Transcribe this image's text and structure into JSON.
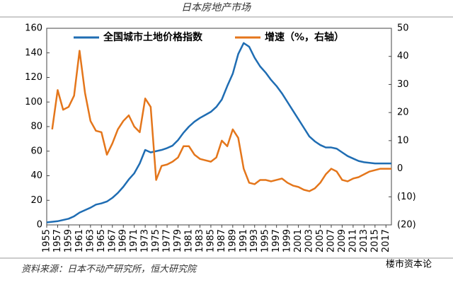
{
  "chart_data": {
    "type": "line",
    "title": "日本房地产市场",
    "x": [
      1955,
      1956,
      1957,
      1958,
      1959,
      1960,
      1961,
      1962,
      1963,
      1964,
      1965,
      1966,
      1967,
      1968,
      1969,
      1970,
      1971,
      1972,
      1973,
      1974,
      1975,
      1976,
      1977,
      1978,
      1979,
      1980,
      1981,
      1982,
      1983,
      1984,
      1985,
      1986,
      1987,
      1988,
      1989,
      1990,
      1991,
      1992,
      1993,
      1994,
      1995,
      1996,
      1997,
      1998,
      1999,
      2000,
      2001,
      2002,
      2003,
      2004,
      2005,
      2006,
      2007,
      2008,
      2009,
      2010,
      2011,
      2012,
      2013,
      2014,
      2015,
      2016,
      2017,
      2018
    ],
    "xlim": [
      1955,
      2018
    ],
    "xticks": [
      1955,
      1957,
      1959,
      1961,
      1963,
      1965,
      1967,
      1969,
      1971,
      1973,
      1975,
      1977,
      1979,
      1981,
      1983,
      1985,
      1987,
      1989,
      1991,
      1993,
      1995,
      1997,
      1999,
      2001,
      2003,
      2005,
      2007,
      2009,
      2011,
      2013,
      2015,
      2017
    ],
    "ylim": [
      0,
      160
    ],
    "yticks": [
      0,
      20,
      40,
      60,
      80,
      100,
      120,
      140,
      160
    ],
    "y2lim": [
      -20,
      50
    ],
    "y2ticks": [
      {
        "value": -20,
        "label": "(20)"
      },
      {
        "value": -10,
        "label": "(10)"
      },
      0,
      10,
      20,
      30,
      40,
      50
    ],
    "negative_tick_color": "#c00000",
    "series": [
      {
        "name": "全国城市土地价格指数",
        "color": "#1f6db3",
        "values": [
          2,
          2.5,
          3,
          4,
          5,
          7,
          10,
          12,
          14,
          16.5,
          17.5,
          19,
          22,
          26,
          31,
          37,
          42,
          50,
          61,
          59,
          60,
          61,
          62.5,
          64.5,
          69,
          75,
          80,
          84,
          87,
          89.5,
          92,
          96,
          102,
          113,
          123,
          139,
          148,
          145,
          136,
          129,
          124,
          118,
          113,
          107,
          100,
          93,
          86,
          79,
          72,
          68,
          65,
          63,
          63,
          62,
          59,
          56,
          54,
          52,
          51,
          50.5,
          50,
          50,
          50,
          50
        ]
      },
      {
        "name": "增速（%，右轴）",
        "color": "#e4761b",
        "axis": "y2",
        "values": [
          null,
          14,
          28,
          21,
          22,
          26,
          42,
          27,
          17,
          13.5,
          13,
          5,
          9,
          14,
          17,
          19,
          15,
          13,
          25,
          22,
          -4,
          1,
          1.5,
          2.5,
          4,
          8,
          8,
          5,
          3.5,
          3,
          2.5,
          4,
          10,
          8,
          14,
          11,
          0,
          -5,
          -5.5,
          -4,
          -4,
          -4.5,
          -4,
          -3.5,
          -5,
          -6,
          -6.5,
          -7.5,
          -8,
          -7,
          -5,
          -2,
          0,
          -1,
          -4,
          -4.5,
          -3.5,
          -3,
          -2,
          -1,
          -0.5,
          0,
          0,
          0
        ]
      }
    ],
    "source": "资料来源：日本不动产研究所，恒大研究院",
    "watermark": "楼市资本论"
  }
}
